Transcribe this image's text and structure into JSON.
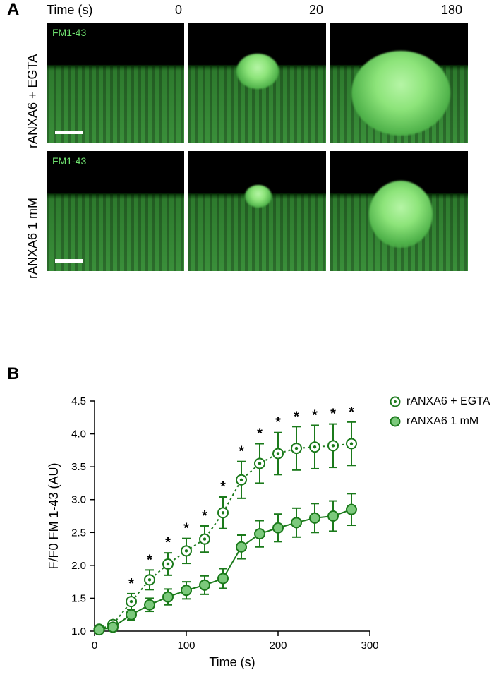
{
  "panelA": {
    "label": "A",
    "time_header_label": "Time (s)",
    "time_values": [
      "0",
      "20",
      "180"
    ],
    "fm_label": "FM1-43",
    "rows": [
      {
        "label": "rANXA6 + EGTA"
      },
      {
        "label": "rANXA6 1 mM"
      }
    ]
  },
  "panelB": {
    "label": "B",
    "chart": {
      "type": "line-scatter",
      "xlabel": "Time (s)",
      "ylabel": "F/F0 FM 1-43 (AU)",
      "xlim": [
        0,
        300
      ],
      "ylim": [
        1.0,
        4.5
      ],
      "xticks": [
        0,
        100,
        200,
        300
      ],
      "yticks": [
        1.0,
        1.5,
        2.0,
        2.5,
        3.0,
        3.5,
        4.0,
        4.5
      ],
      "label_fontsize": 18,
      "tick_fontsize": 15,
      "axis_color": "#000000",
      "tick_length": 7,
      "axis_width": 1.5,
      "marker_radius": 7,
      "line_width": 2,
      "error_cap": 6,
      "series": [
        {
          "name": "rANXA6 + EGTA",
          "color": "#1b7a1b",
          "fill": "#ffffff",
          "inner_dot": true,
          "inner_dot_color": "#1b7a1b",
          "dash": "3,4",
          "x": [
            5,
            20,
            40,
            60,
            80,
            100,
            120,
            140,
            160,
            180,
            200,
            220,
            240,
            260,
            280
          ],
          "y": [
            1.03,
            1.1,
            1.45,
            1.78,
            2.02,
            2.22,
            2.4,
            2.8,
            3.3,
            3.55,
            3.7,
            3.78,
            3.8,
            3.82,
            3.85
          ],
          "err": [
            0.04,
            0.06,
            0.12,
            0.15,
            0.17,
            0.19,
            0.2,
            0.24,
            0.28,
            0.3,
            0.32,
            0.33,
            0.33,
            0.33,
            0.33
          ],
          "sig": [
            false,
            false,
            true,
            true,
            true,
            true,
            true,
            true,
            true,
            true,
            true,
            true,
            true,
            true,
            true
          ]
        },
        {
          "name": "rANXA6 1 mM",
          "color": "#1b7a1b",
          "fill": "#7cc97c",
          "inner_dot": false,
          "dash": "none",
          "x": [
            5,
            20,
            40,
            60,
            80,
            100,
            120,
            140,
            160,
            180,
            200,
            220,
            240,
            260,
            280
          ],
          "y": [
            1.02,
            1.06,
            1.25,
            1.4,
            1.52,
            1.62,
            1.7,
            1.8,
            2.28,
            2.48,
            2.57,
            2.65,
            2.72,
            2.75,
            2.85
          ],
          "err": [
            0.03,
            0.05,
            0.08,
            0.1,
            0.12,
            0.13,
            0.14,
            0.15,
            0.18,
            0.2,
            0.21,
            0.22,
            0.22,
            0.23,
            0.24
          ],
          "sig": [
            false,
            false,
            false,
            false,
            false,
            false,
            false,
            false,
            false,
            false,
            false,
            false,
            false,
            false,
            false
          ]
        }
      ],
      "sig_symbol": "*",
      "sig_fontsize": 20
    },
    "legend_items": [
      {
        "label": "rANXA6 + EGTA",
        "fill": "#ffffff",
        "stroke": "#1b7a1b",
        "inner_dot": true
      },
      {
        "label": "rANXA6 1 mM",
        "fill": "#7cc97c",
        "stroke": "#1b7a1b",
        "inner_dot": false
      }
    ]
  },
  "colors": {
    "panel_label": "#000000",
    "legend_text": "#000000"
  }
}
